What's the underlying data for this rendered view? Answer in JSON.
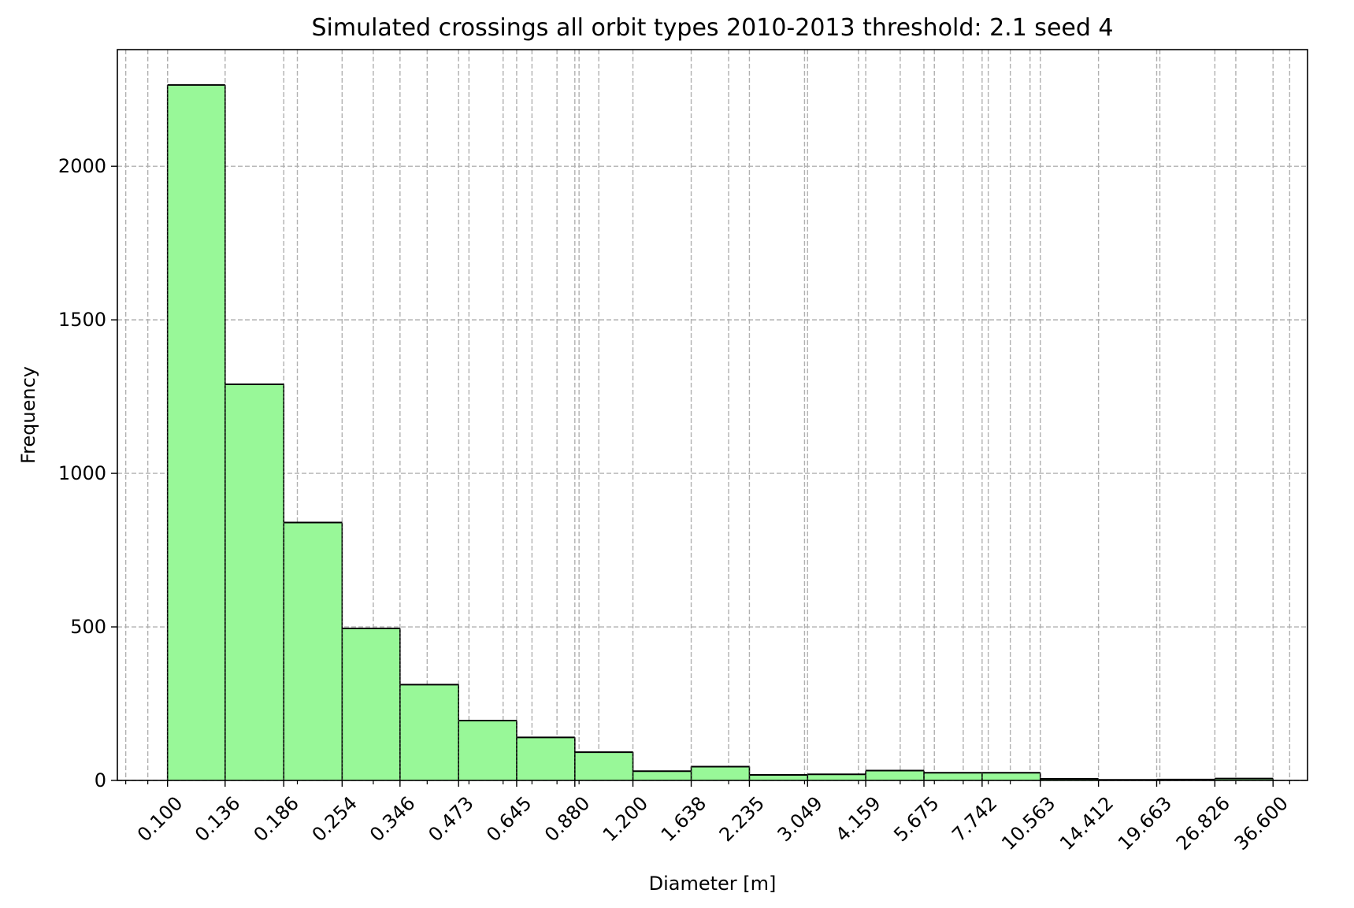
{
  "chart_data": {
    "type": "bar",
    "title": "Simulated crossings all orbit types 2010-2013  threshold: 2.1 seed 4",
    "xlabel": "Diameter [m]",
    "ylabel": "Frequency",
    "x_scale": "log",
    "bin_edges": [
      0.1,
      0.136,
      0.186,
      0.254,
      0.346,
      0.473,
      0.645,
      0.88,
      1.2,
      1.638,
      2.235,
      3.049,
      4.159,
      5.675,
      7.742,
      10.563,
      14.412,
      19.663,
      26.826,
      36.6
    ],
    "tick_labels": [
      "0.100",
      "0.136",
      "0.186",
      "0.254",
      "0.346",
      "0.473",
      "0.645",
      "0.880",
      "1.200",
      "1.638",
      "2.235",
      "3.049",
      "4.159",
      "5.675",
      "7.742",
      "10.563",
      "14.412",
      "19.663",
      "26.826",
      "36.600"
    ],
    "values": [
      2265,
      1290,
      840,
      495,
      312,
      195,
      140,
      92,
      30,
      45,
      18,
      20,
      32,
      25,
      25,
      5,
      2,
      3,
      6
    ],
    "yticks": [
      0,
      500,
      1000,
      1500,
      2000
    ],
    "ylim": [
      0,
      2380
    ],
    "xlim": [
      0.0765,
      44.0
    ],
    "grid": true,
    "grid_style": "dashed",
    "bar_color": "#98f898",
    "edge_color": "#000000",
    "grid_color": "#b0b0b0"
  }
}
